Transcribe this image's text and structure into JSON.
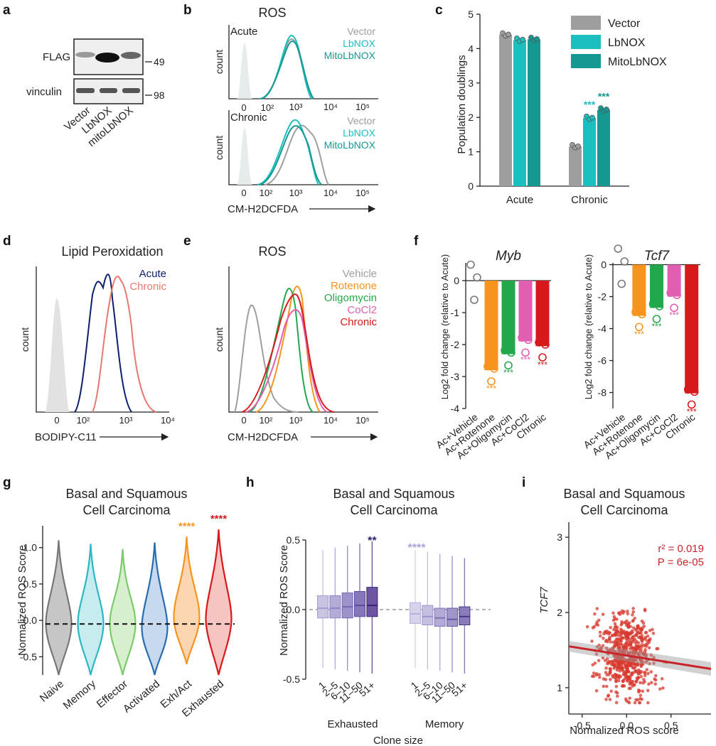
{
  "panels": {
    "a": {
      "label": "a",
      "row1_label": "FLAG",
      "row2_label": "vinculin",
      "mw1": "49",
      "mw2": "98",
      "lanes": [
        "Vector",
        "LbNOX",
        "mitoLbNOX"
      ]
    },
    "b": {
      "label": "b",
      "title": "ROS",
      "top_label": "Acute",
      "bottom_label": "Chronic",
      "ylabel": "count",
      "xlabel": "CM-H2DCFDA",
      "legend": [
        "Vector",
        "LbNOX",
        "MitoLbNOX"
      ],
      "ticks": [
        "0",
        "10²",
        "10³",
        "10⁴",
        "10⁵"
      ]
    },
    "c": {
      "label": "c",
      "ylabel": "Population doublings",
      "sig": "***"
    },
    "d": {
      "label": "d",
      "title": "Lipid Peroxidation",
      "ylabel": "count",
      "xlabel": "BODIPY-C11",
      "legend": [
        "Acute",
        "Chronic"
      ],
      "ticks": [
        "0",
        "10²",
        "10³",
        "10⁴"
      ]
    },
    "e": {
      "label": "e",
      "title": "ROS",
      "ylabel": "count",
      "xlabel": "CM-H2DCFDA",
      "legend": [
        "Vehicle",
        "Rotenone",
        "Oligomycin",
        "CoCl2",
        "Chronic"
      ],
      "ticks": [
        "0",
        "10²",
        "10³",
        "10⁴",
        "10⁵"
      ]
    },
    "f": {
      "label": "f",
      "ylabel": "Log2 fold change (relative to Acute)",
      "sig": "***"
    },
    "g": {
      "label": "g",
      "title_l1": "Basal and Squamous",
      "title_l2": "Cell Carcinoma",
      "ylabel": "Normalized ROS Score",
      "sig": "****"
    },
    "h": {
      "label": "h",
      "title_l1": "Basal and Squamous",
      "title_l2": "Cell Carcinoma",
      "ylabel": "Normalized ROS Score",
      "xlabel": "Clone size",
      "group1": "Exhausted",
      "group2": "Memory",
      "sig1": "**",
      "sig2": "****"
    },
    "i": {
      "label": "i",
      "title_l1": "Basal and Squamous",
      "title_l2": "Cell Carcinoma",
      "ylabel": "TCF7",
      "xlabel": "Normalized ROS score",
      "r2": "r² = 0.019",
      "p": "P = 6e-05"
    }
  },
  "colors": {
    "vector": "#9e9e9e",
    "lbnox": "#1bbfbf",
    "mitolbnox": "#149891",
    "acute": "#0b1f6e",
    "chronic_lipid": "#e8776f",
    "rotenone": "#f7941d",
    "oligomycin": "#22a84b",
    "cocl2": "#e05fb0",
    "chronic": "#d7191c"
  },
  "chart_data": [
    {
      "id": "c",
      "type": "bar",
      "title": "",
      "categories": [
        "Acute",
        "Chronic"
      ],
      "series": [
        {
          "name": "Vector",
          "values": [
            4.4,
            1.15
          ]
        },
        {
          "name": "LbNOX",
          "values": [
            4.25,
            1.98
          ]
        },
        {
          "name": "MitoLbNOX",
          "values": [
            4.27,
            2.22
          ]
        }
      ],
      "ylabel": "Population doublings",
      "ylim": [
        0,
        5
      ],
      "yticks": [
        "0",
        "1",
        "2",
        "3",
        "4",
        "5"
      ],
      "annotations": [
        {
          "series": "LbNOX",
          "category": "Chronic",
          "text": "***"
        },
        {
          "series": "MitoLbNOX",
          "category": "Chronic",
          "text": "***"
        }
      ]
    },
    {
      "id": "f-myb",
      "type": "bar",
      "title": "Myb",
      "categories": [
        "Ac+Vehicle",
        "Ac+Rotenone",
        "Ac+Oligomycin",
        "Ac+CoCl2",
        "Chronic"
      ],
      "values": [
        0.0,
        -2.8,
        -2.3,
        -1.9,
        -2.05
      ],
      "ylabel": "Log2 fold change (relative to Acute)",
      "ylim": [
        -4,
        1
      ],
      "yticks": [
        "0",
        "-1",
        "-2",
        "-3",
        "-4"
      ],
      "annotations": [
        "",
        "***",
        "***",
        "***",
        "***"
      ]
    },
    {
      "id": "f-tcf7",
      "type": "bar",
      "title": "Tcf7",
      "categories": [
        "Ac+Vehicle",
        "Ac+Rotenone",
        "Ac+Oligomycin",
        "Ac+CoCl2",
        "Chronic"
      ],
      "values": [
        0.0,
        -3.2,
        -2.7,
        -2.0,
        -8.05
      ],
      "ylabel": "Log2 fold change (relative to Acute)",
      "ylim": [
        -9,
        1
      ],
      "yticks": [
        "0",
        "-2",
        "-4",
        "-6",
        "-8"
      ],
      "annotations": [
        "",
        "***",
        "***",
        "***",
        "***"
      ]
    },
    {
      "id": "g",
      "type": "violin",
      "title": "Basal and Squamous Cell Carcinoma",
      "categories": [
        "Naive",
        "Memory",
        "Effector",
        "Activated",
        "Exh/Act",
        "Exhausted"
      ],
      "medians": [
        -0.05,
        -0.05,
        -0.05,
        -0.1,
        0.05,
        0.02
      ],
      "ranges": [
        [
          -0.75,
          1.1
        ],
        [
          -0.75,
          1.05
        ],
        [
          -0.75,
          0.98
        ],
        [
          -0.75,
          1.07
        ],
        [
          -0.6,
          1.15
        ],
        [
          -0.75,
          1.25
        ]
      ],
      "ylabel": "Normalized ROS Score",
      "ylim": [
        -0.75,
        1.3
      ],
      "yticks": [
        "-0.5",
        "0.0",
        "0.5",
        "1.0"
      ],
      "annotations": [
        "",
        "",
        "",
        "",
        "****",
        "****"
      ]
    },
    {
      "id": "h",
      "type": "box",
      "title": "Basal and Squamous Cell Carcinoma",
      "groups": [
        "Exhausted",
        "Memory"
      ],
      "categories": [
        "1",
        "2–5",
        "6–10",
        "11–50",
        "51+"
      ],
      "series": [
        {
          "name": "Exhausted",
          "median": [
            0.01,
            0.01,
            0.02,
            0.03,
            0.03
          ],
          "q1": [
            -0.06,
            -0.06,
            -0.06,
            -0.05,
            -0.05
          ],
          "q3": [
            0.1,
            0.1,
            0.12,
            0.13,
            0.16
          ]
        },
        {
          "name": "Memory",
          "median": [
            -0.03,
            -0.05,
            -0.06,
            -0.07,
            -0.05
          ],
          "q1": [
            -0.1,
            -0.11,
            -0.12,
            -0.12,
            -0.11
          ],
          "q3": [
            0.05,
            0.03,
            0.01,
            0.01,
            0.02
          ]
        }
      ],
      "ylabel": "Normalized ROS Score",
      "xlabel": "Clone size",
      "ylim": [
        -0.5,
        0.5
      ],
      "yticks": [
        "-0.5",
        "0.0",
        "0.5"
      ]
    },
    {
      "id": "i",
      "type": "scatter",
      "title": "Basal and Squamous Cell Carcinoma",
      "xlabel": "Normalized ROS score",
      "ylabel": "TCF7",
      "xlim": [
        -0.65,
        0.95
      ],
      "ylim": [
        0.65,
        3.2
      ],
      "xticks": [
        "-0.5",
        "0.0",
        "0.5"
      ],
      "yticks": [
        "1",
        "2",
        "3"
      ],
      "fit": {
        "x": [
          -0.65,
          0.95
        ],
        "y": [
          1.55,
          1.25
        ]
      },
      "stats": {
        "r2": 0.019,
        "p": "6e-05"
      }
    }
  ]
}
